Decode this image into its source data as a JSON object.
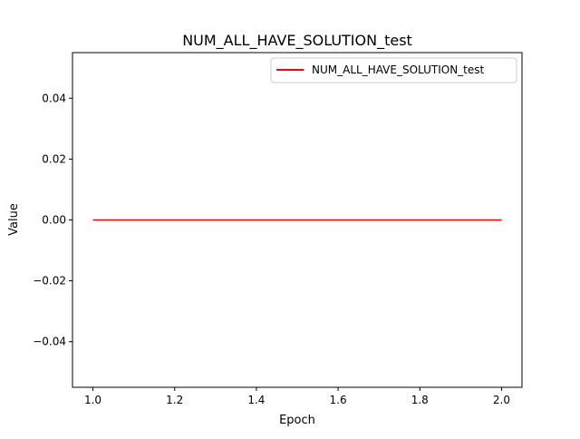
{
  "chart_data": {
    "type": "line",
    "title": "NUM_ALL_HAVE_SOLUTION_test",
    "xlabel": "Epoch",
    "ylabel": "Value",
    "xlim": [
      0.95,
      2.05
    ],
    "ylim": [
      -0.055,
      0.055
    ],
    "x_ticks": [
      1.0,
      1.2,
      1.4,
      1.6,
      1.8,
      2.0
    ],
    "x_tick_labels": [
      "1.0",
      "1.2",
      "1.4",
      "1.6",
      "1.8",
      "2.0"
    ],
    "y_ticks": [
      -0.04,
      -0.02,
      0.0,
      0.02,
      0.04
    ],
    "y_tick_labels": [
      "−0.04",
      "−0.02",
      "0.00",
      "0.02",
      "0.04"
    ],
    "grid": false,
    "legend_position": "top-right",
    "series": [
      {
        "name": "NUM_ALL_HAVE_SOLUTION_test",
        "color": "#ff0000",
        "x": [
          1,
          2
        ],
        "y": [
          0,
          0
        ]
      }
    ]
  }
}
